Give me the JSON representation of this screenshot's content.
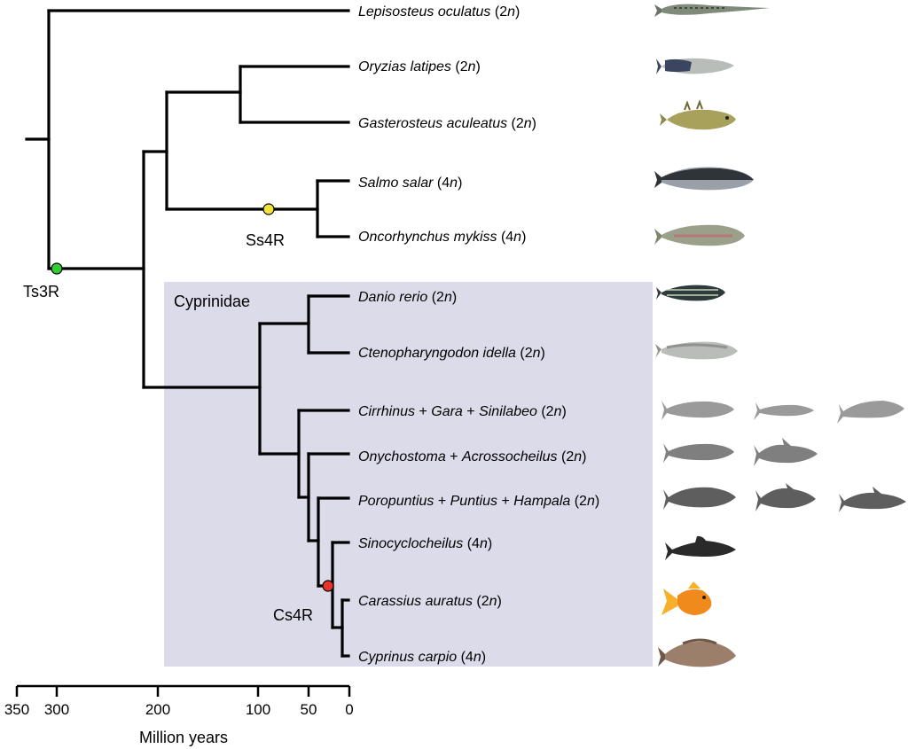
{
  "clade": {
    "name": "Cyprinidae",
    "color": "#dcdbea"
  },
  "events": {
    "ts3r": {
      "label": "Ts3R",
      "color": "#33cc33"
    },
    "ss4r": {
      "label": "Ss4R",
      "color": "#f2e23a"
    },
    "cs4r": {
      "label": "Cs4R",
      "color": "#e8322a"
    }
  },
  "taxa": [
    {
      "parts": [
        [
          "Lepisosteus oculatus",
          true
        ],
        [
          " (2",
          false
        ],
        [
          "n",
          true
        ],
        [
          ")",
          false
        ]
      ]
    },
    {
      "parts": [
        [
          "Oryzias latipes",
          true
        ],
        [
          " (2",
          false
        ],
        [
          "n",
          true
        ],
        [
          ")",
          false
        ]
      ]
    },
    {
      "parts": [
        [
          "Gasterosteus aculeatus",
          true
        ],
        [
          " (2",
          false
        ],
        [
          "n",
          true
        ],
        [
          ")",
          false
        ]
      ]
    },
    {
      "parts": [
        [
          "Salmo salar",
          true
        ],
        [
          " (4",
          false
        ],
        [
          "n",
          true
        ],
        [
          ")",
          false
        ]
      ]
    },
    {
      "parts": [
        [
          "Oncorhynchus mykiss",
          true
        ],
        [
          " (4",
          false
        ],
        [
          "n",
          true
        ],
        [
          ")",
          false
        ]
      ]
    },
    {
      "parts": [
        [
          "Danio rerio",
          true
        ],
        [
          " (2",
          false
        ],
        [
          "n",
          true
        ],
        [
          ")",
          false
        ]
      ]
    },
    {
      "parts": [
        [
          "Ctenopharyngodon idella",
          true
        ],
        [
          " (2",
          false
        ],
        [
          "n",
          true
        ],
        [
          ")",
          false
        ]
      ]
    },
    {
      "parts": [
        [
          "Cirrhinus",
          true
        ],
        [
          " + ",
          false
        ],
        [
          "Gara",
          true
        ],
        [
          " + ",
          false
        ],
        [
          "Sinilabeo",
          true
        ],
        [
          " (2",
          false
        ],
        [
          "n",
          true
        ],
        [
          ")",
          false
        ]
      ]
    },
    {
      "parts": [
        [
          "Onychostoma",
          true
        ],
        [
          " + ",
          false
        ],
        [
          "Acrossocheilus",
          true
        ],
        [
          " (2",
          false
        ],
        [
          "n",
          true
        ],
        [
          ")",
          false
        ]
      ]
    },
    {
      "parts": [
        [
          "Poropuntius",
          true
        ],
        [
          " + ",
          false
        ],
        [
          "Puntius",
          true
        ],
        [
          " + ",
          false
        ],
        [
          "Hampala",
          true
        ],
        [
          " (2",
          false
        ],
        [
          "n",
          true
        ],
        [
          ")",
          false
        ]
      ]
    },
    {
      "parts": [
        [
          "Sinocyclocheilus",
          true
        ],
        [
          " (4",
          false
        ],
        [
          "n",
          true
        ],
        [
          ")",
          false
        ]
      ]
    },
    {
      "parts": [
        [
          "Carassius auratus",
          true
        ],
        [
          " (2",
          false
        ],
        [
          "n",
          true
        ],
        [
          ")",
          false
        ]
      ]
    },
    {
      "parts": [
        [
          "Cyprinus carpio",
          true
        ],
        [
          " (4",
          false
        ],
        [
          "n",
          true
        ],
        [
          ")",
          false
        ]
      ]
    }
  ],
  "axis": {
    "title": "Million years",
    "ticks": [
      "350",
      "300",
      "200",
      "100",
      "50",
      "0"
    ]
  },
  "icons": [
    "gar-icon",
    "medaka-icon",
    "stickleback-icon",
    "salmon-icon",
    "trout-icon",
    "zebrafish-icon",
    "grass-carp-icon",
    "cyprinid-silhouette-icon",
    "cyprinid-silhouette-icon",
    "cyprinid-silhouette-icon",
    "sinocyclocheilus-silhouette-icon",
    "goldfish-icon",
    "common-carp-icon"
  ]
}
